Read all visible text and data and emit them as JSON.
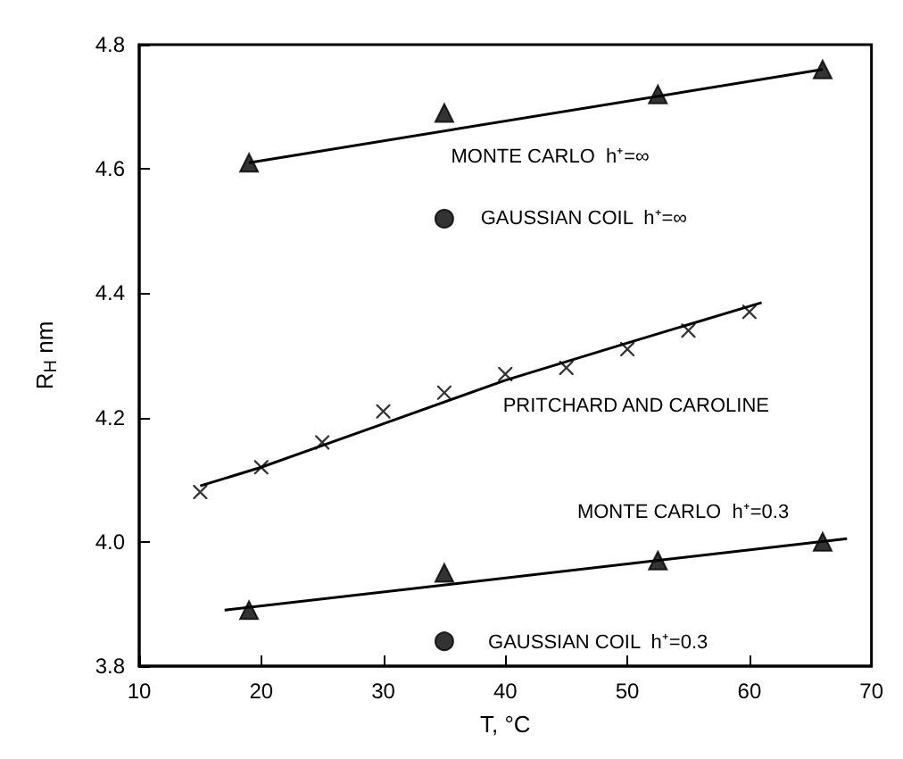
{
  "chart_data": {
    "type": "scatter",
    "xlabel": "T, °C",
    "ylabel": "R$_{H}$ nm",
    "xlim": [
      10,
      70
    ],
    "xticks": [
      10,
      20,
      30,
      40,
      50,
      60,
      70
    ],
    "ylim": [
      3.8,
      4.8
    ],
    "yticks": [
      3.8,
      {
        "value": 4,
        "label": "4.0"
      },
      4.2,
      4.4,
      4.6,
      4.8
    ],
    "grid": false,
    "series": [
      {
        "marker": "triangle",
        "color": "#000000",
        "x": [
          19,
          35,
          52.5,
          66
        ],
        "values": [
          4.61,
          4.69,
          4.72,
          4.76
        ]
      },
      {
        "type": "line",
        "marker": "none",
        "color": "#000000",
        "x": [
          19,
          66
        ],
        "values": [
          4.61,
          4.76
        ]
      },
      {
        "marker": "circle",
        "color": "#000000",
        "x": [
          35
        ],
        "values": [
          4.52
        ]
      },
      {
        "marker": "cross",
        "color": "#000000",
        "x": [
          15,
          20,
          25,
          30,
          35,
          40,
          45,
          50,
          55,
          60
        ],
        "values": [
          4.08,
          4.12,
          4.16,
          4.21,
          4.24,
          4.27,
          4.28,
          4.31,
          4.34,
          4.37
        ]
      },
      {
        "type": "line",
        "marker": "none",
        "color": "#000000",
        "x": [
          15,
          20,
          30,
          40,
          50,
          61
        ],
        "values": [
          4.09,
          4.12,
          4.19,
          4.26,
          4.32,
          4.385
        ]
      },
      {
        "marker": "triangle",
        "color": "#000000",
        "x": [
          19,
          35,
          52.5,
          66
        ],
        "values": [
          3.89,
          3.95,
          3.97,
          4.0
        ]
      },
      {
        "type": "line",
        "marker": "none",
        "color": "#000000",
        "x": [
          17,
          68
        ],
        "values": [
          3.89,
          4.005
        ]
      },
      {
        "marker": "circle",
        "color": "#000000",
        "x": [
          35
        ],
        "values": [
          3.84
        ]
      }
    ],
    "annotations": [
      "MONTE CARLO  h⁺=∞",
      "GAUSSIAN COIL  h⁺=∞",
      "PRITCHARD AND CAROLINE",
      "MONTE CARLO  h⁺=0.3",
      "GAUSSIAN COIL  h⁺=0.3"
    ]
  }
}
